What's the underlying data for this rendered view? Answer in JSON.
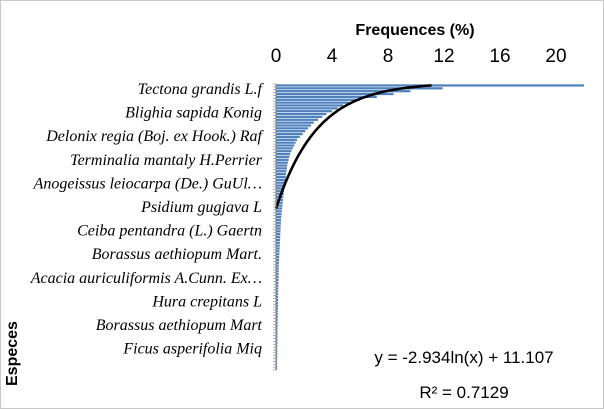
{
  "chart_data": {
    "type": "bar",
    "orientation": "horizontal",
    "xlabel": "Frequences (%)",
    "ylabel": "Especes",
    "xlim": [
      0,
      22
    ],
    "xticks": [
      "0",
      "4",
      "8",
      "12",
      "16",
      "20"
    ],
    "category_labels": [
      "Tectona grandis L.f",
      "Blighia sapida Konig",
      "Delonix regia (Boj. ex Hook.) Raf",
      "Terminalia mantaly H.Perrier",
      "Anogeissus leiocarpa (De.) GuUl…",
      "Psidium gugjava L",
      "Ceiba pentandra (L.) Gaertn",
      "Borassus aethiopum Mart.",
      "Acacia auriculiformis A.Cunn. Ex…",
      "Hura crepitans L",
      "Borassus aethiopum Mart",
      "Ficus asperifolia Miq"
    ],
    "values": [
      22.0,
      11.9,
      9.6,
      8.4,
      7.2,
      6.0,
      5.2,
      4.8,
      4.4,
      4.0,
      3.6,
      3.3,
      3.0,
      2.7,
      2.5,
      2.3,
      2.1,
      1.9,
      1.7,
      1.5,
      1.4,
      1.3,
      1.2,
      1.1,
      1.0,
      0.95,
      0.9,
      0.85,
      0.8,
      0.78,
      0.75,
      0.72,
      0.7,
      0.68,
      0.65,
      0.62,
      0.6,
      0.58,
      0.55,
      0.52,
      0.5,
      0.48,
      0.46,
      0.44,
      0.42,
      0.4,
      0.38,
      0.36,
      0.35,
      0.34,
      0.33,
      0.32,
      0.31,
      0.3,
      0.29,
      0.28,
      0.27,
      0.26,
      0.25,
      0.24,
      0.23,
      0.22,
      0.21,
      0.2,
      0.2,
      0.19,
      0.19,
      0.18,
      0.18,
      0.17,
      0.17,
      0.16,
      0.16,
      0.15,
      0.15,
      0.15,
      0.14,
      0.14,
      0.14,
      0.13,
      0.13,
      0.13,
      0.12,
      0.12,
      0.12,
      0.11,
      0.11,
      0.11,
      0.1,
      0.1,
      0.1,
      0.1,
      0.09,
      0.09,
      0.09,
      0.09,
      0.08,
      0.08,
      0.08,
      0.08
    ],
    "trendline": {
      "type": "logarithmic",
      "a": -2.934,
      "b": 11.107,
      "equation": "y = -2.934ln(x) + 11.107",
      "r2": "R² = 0.7129"
    },
    "bar_color": "#4f81bd",
    "trend_color": "#000000",
    "grid": false,
    "legend": "none"
  }
}
